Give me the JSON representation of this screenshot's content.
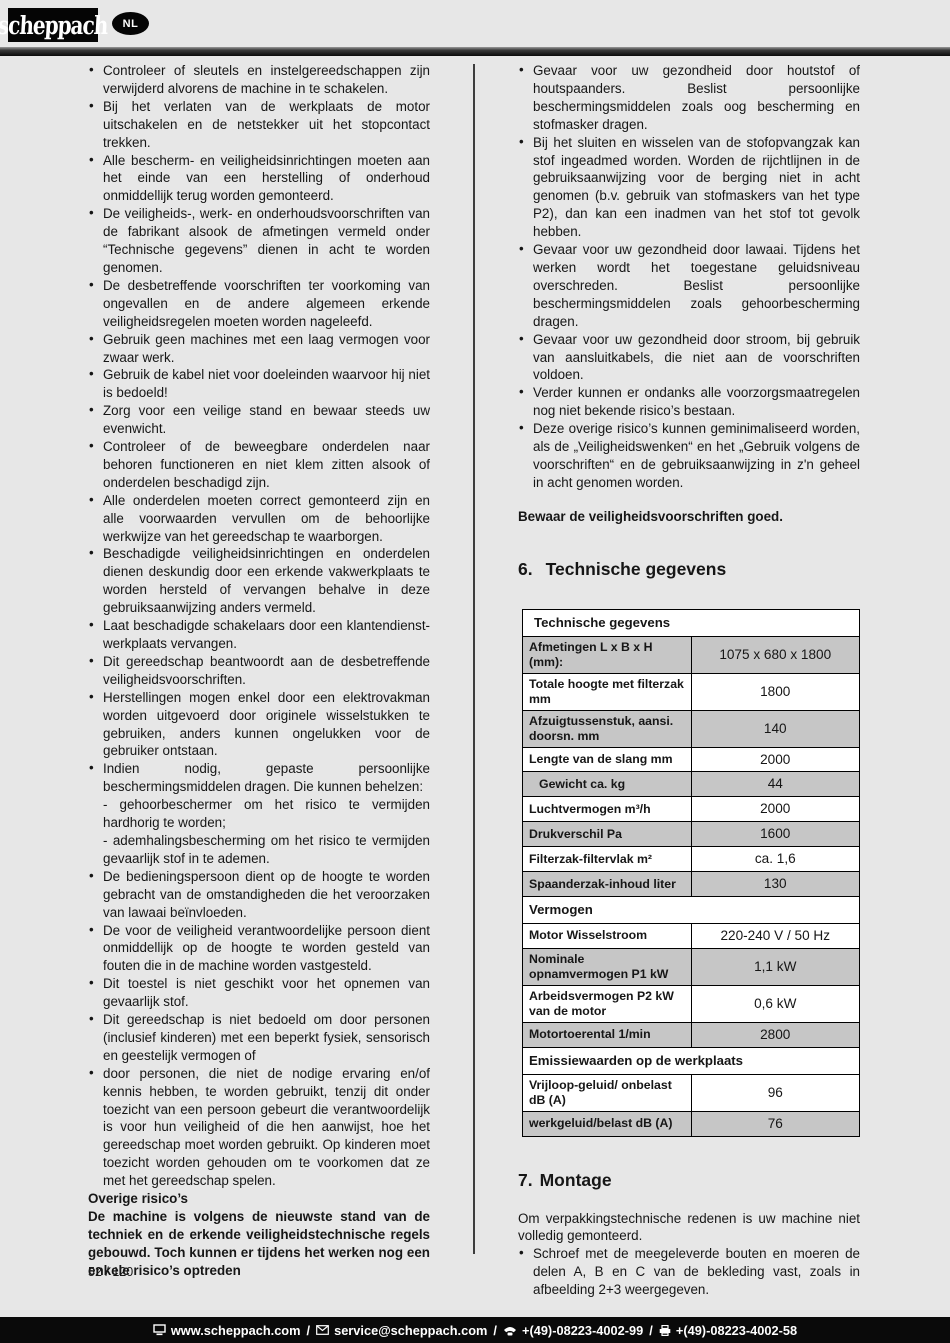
{
  "header": {
    "logo_text": "scheppach",
    "language_badge": "NL"
  },
  "left_column": {
    "bullets": [
      "Controleer of sleutels en instelgereedschappen zijn verwijderd alvorens de machine in te schakelen.",
      "Bij het verlaten van de werkplaats de motor uitschakelen en de netstekker uit het stopcontact trekken.",
      "Alle bescherm- en veiligheidsinrichtingen moeten aan het einde van een herstelling of onderhoud onmiddellijk terug worden gemonteerd.",
      "De veiligheids-, werk- en onderhoudsvoorschriften van de fabrikant alsook de afmetingen vermeld onder “Technische gegevens” dienen in acht te worden genomen.",
      "De desbetreffende voorschriften ter voorkoming van ongevallen en de andere algemeen erkende veiligheidsregelen moeten worden nageleefd.",
      "Gebruik geen machines met een laag vermogen voor zwaar werk.",
      "Gebruik de kabel niet voor doeleinden waarvoor hij niet is bedoeld!",
      "Zorg voor een veilige stand en bewaar steeds uw evenwicht.",
      "Controleer of de beweegbare onderdelen naar behoren functioneren en niet klem zitten alsook of onderdelen beschadigd zijn.",
      "Alle onderdelen moeten correct gemonteerd zijn en alle voorwaarden vervullen om de behoorlijke werkwijze van het gereedschap te waarborgen.",
      "Beschadigde veiligheidsinrichtingen en onderdelen dienen deskundig door een erkende vakwerkplaats te worden hersteld of vervangen behalve in deze gebruiksaanwijzing anders vermeld.",
      "Laat beschadigde schakelaars door een klantendienst-werkplaats vervangen.",
      "Dit gereedschap beantwoordt aan de desbetreffende veiligheidsvoorschriften.",
      "Herstellingen mogen enkel door een elektrovakman worden uitgevoerd door originele wisselstukken te gebruiken, anders kunnen ongelukken voor de gebruiker ontstaan.",
      "Indien nodig, gepaste persoonlijke beschermingsmiddelen dragen. Die kunnen behelzen:\n- gehoorbeschermer om het risico te vermijden hardhorig te worden;\n- ademhalingsbescherming om het risico te vermijden gevaarlijk stof in te ademen.",
      "De bedieningspersoon dient op de hoogte te worden gebracht van de omstandigheden die het veroorzaken van lawaai beïnvloeden.",
      "De voor de veiligheid verantwoordelijke persoon dient onmiddellijk op de hoogte te worden gesteld van fouten die in de machine worden vastgesteld.",
      "Dit toestel is niet geschikt voor het opnemen van gevaarlijk stof.",
      "Dit gereedschap is niet bedoeld om door personen (inclusief kinderen) met een beperkt fysiek, sensorisch en geestelijk vermogen of",
      "door personen, die niet de nodige ervaring en/of kennis hebben, te worden gebruikt, tenzij dit onder toezicht van een persoon gebeurt die verantwoordelijk is voor hun veiligheid of die hen aanwijst, hoe het gereedschap moet worden gebruikt. Op kinderen moet toezicht worden gehouden om te voorkomen dat ze met het gereedschap spelen."
    ],
    "risks_heading": "Overige risico’s",
    "risks_paragraph": "De machine is volgens de nieuwste stand van de techniek en de erkende veiligheidstechnische regels gebouwd. Toch kunnen er tijdens het werken nog een enkele risico’s optreden"
  },
  "right_column": {
    "bullets": [
      "Gevaar voor uw gezondheid door houtstof of houtspaanders. Beslist persoonlijke beschermingsmiddelen zoals oog bescherming en stofmasker dragen.",
      "Bij het sluiten en wisselen van de stofopvangzak kan stof ingeadmed worden. Worden de rijchtlijnen in de gebruiksaanwijzing voor de berging niet in acht genomen (b.v. gebruik van stofmaskers van het type P2), dan kan een inadmen van het stof tot gevolk hebben.",
      "Gevaar voor uw gezondheid door lawaai. Tijdens het werken wordt het toegestane geluidsniveau overschreden. Beslist persoonlijke beschermingsmiddelen zoals gehoorbescherming dragen.",
      "Gevaar voor uw gezondheid door stroom, bij gebruik van aansluitkabels, die niet aan de voorschriften voldoen.",
      "Verder kunnen er ondanks alle voorzorgsmaatregelen nog niet bekende risico’s bestaan.",
      "Deze overige risico’s kunnen geminimaliseerd worden, als de „Veiligheidswenken“ en het „Gebruik volgens de voorschriften“ en de gebruiksaanwijzing in z'n geheel in acht genomen worden."
    ],
    "keep_note": "Bewaar de veiligheidsvoorschriften goed.",
    "section6_number": "6.",
    "section6_title": "Technische gegevens",
    "table": {
      "title": "Technische gegevens",
      "rows": [
        {
          "type": "data",
          "label": "Afmetingen L x B x H (mm):",
          "value": "1075 x 680 x 1800",
          "shaded": true
        },
        {
          "type": "data",
          "label": "Totale hoogte met filterzak mm",
          "value": "1800",
          "shaded": false
        },
        {
          "type": "data",
          "label": "Afzuigtussenstuk, aansi. doorsn. mm",
          "value": "140",
          "shaded": true
        },
        {
          "type": "data",
          "label": "Lengte van de slang mm",
          "value": "2000",
          "shaded": false
        },
        {
          "type": "data",
          "label": "Gewicht ca. kg",
          "value": "44",
          "shaded": true,
          "indent": true
        },
        {
          "type": "data",
          "label": "Luchtvermogen m³/h",
          "value": "2000",
          "shaded": false
        },
        {
          "type": "data",
          "label": "Drukverschil Pa",
          "value": "1600",
          "shaded": true
        },
        {
          "type": "data",
          "label": "Filterzak-filtervlak m²",
          "value": "ca. 1,6",
          "shaded": false
        },
        {
          "type": "data",
          "label": "Spaanderzak-inhoud liter",
          "value": "130",
          "shaded": true
        },
        {
          "type": "section",
          "label": "Vermogen"
        },
        {
          "type": "data",
          "label": "Motor Wisselstroom",
          "value": "220-240 V / 50 Hz",
          "shaded": false
        },
        {
          "type": "data",
          "label": "Nominale opnamvermogen P1 kW",
          "value": "1,1 kW",
          "shaded": true
        },
        {
          "type": "data",
          "label": "Arbeidsvermogen P2 kW van de motor",
          "value": "0,6 kW",
          "shaded": false
        },
        {
          "type": "data",
          "label": "Motortoerental 1/min",
          "value": "2800",
          "shaded": true
        },
        {
          "type": "section",
          "label": "Emissiewaarden op de werkplaats"
        },
        {
          "type": "data",
          "label": "Vrijloop-geluid/ onbelast dB (A)",
          "value": "96",
          "shaded": false
        },
        {
          "type": "data",
          "label": "werkgeluid/belast dB (A)",
          "value": "76",
          "shaded": true
        }
      ]
    },
    "section7_number": "7.",
    "section7_title": "Montage",
    "montage_paragraph": "Om verpakkingstechnische redenen is uw machine niet volledig gemonteerd.",
    "montage_bullets": [
      "Schroef met de meegeleverde bouten en moeren de delen A, B en C van de bekleding vast, zoals in afbeelding 2+3 weergegeven."
    ]
  },
  "footer": {
    "page_number": "52 / 120",
    "contact": {
      "website": "www.scheppach.com",
      "email": "service@scheppach.com",
      "phone": "+(49)-08223-4002-99",
      "fax": "+(49)-08223-4002-58",
      "separator": "/"
    }
  }
}
